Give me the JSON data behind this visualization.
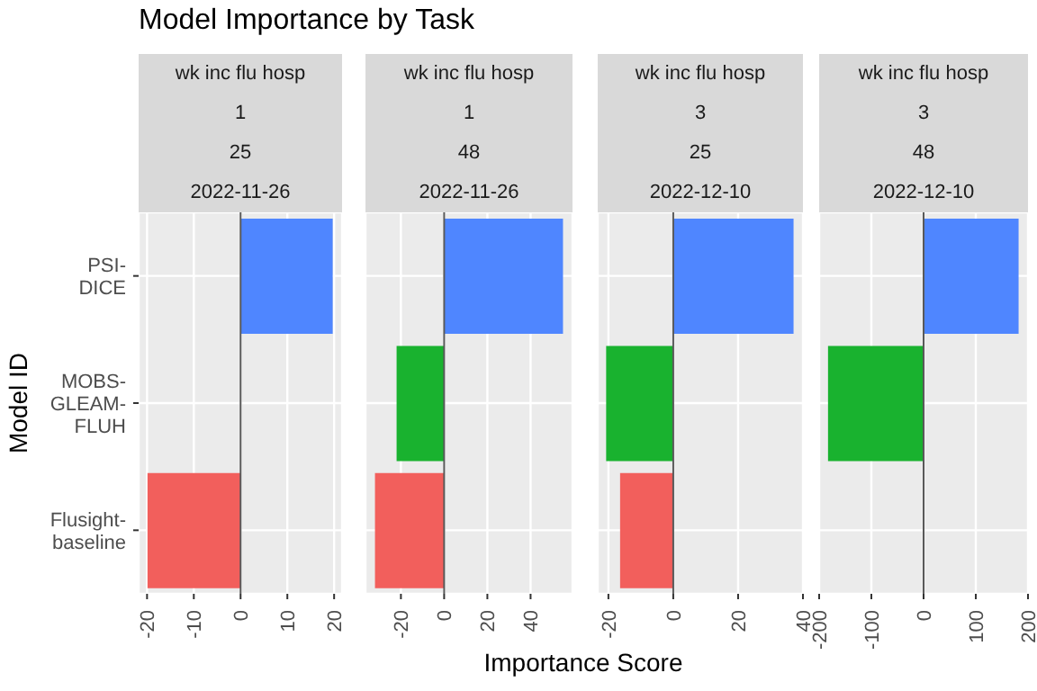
{
  "chart_data": [
    {
      "type": "bar",
      "orientation": "horizontal",
      "title": "Model Importance by Task",
      "xlabel": "Importance Score",
      "ylabel": "Model ID",
      "annotations": [
        "wk inc flu hosp",
        "1",
        "25",
        "2022-11-26"
      ],
      "categories": [
        "PSI-DICE",
        "MOBS-GLEAM-FLUH",
        "Flusight-baseline"
      ],
      "values": [
        19.7,
        null,
        -19.9
      ],
      "colors": [
        "#4f86ff",
        "#19b22f",
        "#f25f5c"
      ],
      "xlim": [
        -21.8,
        21.7
      ],
      "xticks": [
        -20,
        -10,
        0,
        10,
        20
      ],
      "grid": true,
      "ref_lines": [
        {
          "axis": "x",
          "value": 0,
          "color": "#595959"
        }
      ]
    },
    {
      "type": "bar",
      "orientation": "horizontal",
      "annotations": [
        "wk inc flu hosp",
        "1",
        "48",
        "2022-11-26"
      ],
      "categories": [
        null,
        null,
        null
      ],
      "values": [
        55,
        -22,
        -32
      ],
      "colors": [
        "#4f86ff",
        "#19b22f",
        "#f25f5c"
      ],
      "xlim": [
        -36.4,
        59.4
      ],
      "xticks": [
        -20,
        0,
        20,
        40
      ],
      "grid": true,
      "tick_labels": "x",
      "ref_lines": [
        {
          "axis": "x",
          "value": 0,
          "color": "#595959"
        }
      ]
    },
    {
      "type": "bar",
      "orientation": "horizontal",
      "annotations": [
        "wk inc flu hosp",
        "3",
        "25",
        "2022-12-10"
      ],
      "categories": [
        null,
        null,
        null
      ],
      "values": [
        37.1,
        -20.7,
        -16.4
      ],
      "colors": [
        "#4f86ff",
        "#19b22f",
        "#f25f5c"
      ],
      "xlim": [
        -23.3,
        40
      ],
      "xticks": [
        -20,
        0,
        20,
        40
      ],
      "grid": true,
      "tick_labels": "x",
      "ref_lines": [
        {
          "axis": "x",
          "value": 0,
          "color": "#595959"
        }
      ]
    },
    {
      "type": "bar",
      "orientation": "horizontal",
      "annotations": [
        "wk inc flu hosp",
        "3",
        "48",
        "2022-12-10"
      ],
      "categories": [
        null,
        null,
        null
      ],
      "values": [
        182,
        -183,
        null
      ],
      "colors": [
        "#4f86ff",
        "#19b22f",
        "#f25f5c"
      ],
      "xlim": [
        -200,
        200
      ],
      "xticks": [
        -200,
        -100,
        0,
        100,
        200
      ],
      "grid": true,
      "tick_labels": "x",
      "ref_lines": [
        {
          "axis": "x",
          "value": 0,
          "color": "#595959"
        }
      ]
    }
  ]
}
